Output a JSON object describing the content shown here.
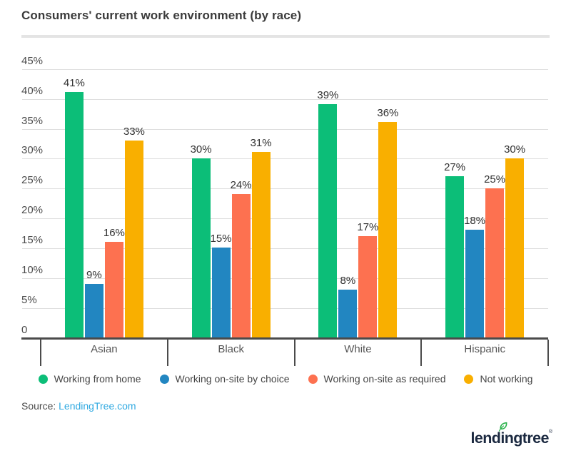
{
  "title": "Consumers' current work environment (by race)",
  "source": {
    "label": "Source:",
    "link_text": "LendingTree.com"
  },
  "logo": {
    "text": "lendingtree",
    "reg_mark": "®",
    "leaf_icon": "leaf-icon"
  },
  "colors": {
    "green": "#0cbe78",
    "blue": "#2286c1",
    "coral": "#fd7150",
    "yellow": "#f9af00",
    "grid": "#dedede",
    "axis": "#4b4b4b",
    "link_blue": "#2fa9e1",
    "logo_navy": "#1b2940",
    "leaf_green": "#2bb24c"
  },
  "chart_data": {
    "type": "bar",
    "title": "Consumers' current work environment (by race)",
    "categories": [
      "Asian",
      "Black",
      "White",
      "Hispanic"
    ],
    "series": [
      {
        "name": "Working from home",
        "color": "#0cbe78",
        "values": [
          41,
          30,
          39,
          27
        ]
      },
      {
        "name": "Working on-site by choice",
        "color": "#2286c1",
        "values": [
          9,
          15,
          8,
          18
        ]
      },
      {
        "name": "Working on-site as required",
        "color": "#fd7150",
        "values": [
          16,
          24,
          17,
          25
        ]
      },
      {
        "name": "Not working",
        "color": "#f9af00",
        "values": [
          33,
          31,
          36,
          30
        ]
      }
    ],
    "xlabel": "",
    "ylabel": "",
    "ylim": [
      0,
      45
    ],
    "ytick_values": [
      45,
      40,
      35,
      30,
      25,
      20,
      15,
      10,
      5,
      0
    ],
    "ytick_labels": [
      "45%",
      "40%",
      "35%",
      "30%",
      "25%",
      "20%",
      "15%",
      "10%",
      "5%",
      "0"
    ],
    "value_label_format": "{v}%",
    "grid": true,
    "legend_position": "bottom"
  }
}
